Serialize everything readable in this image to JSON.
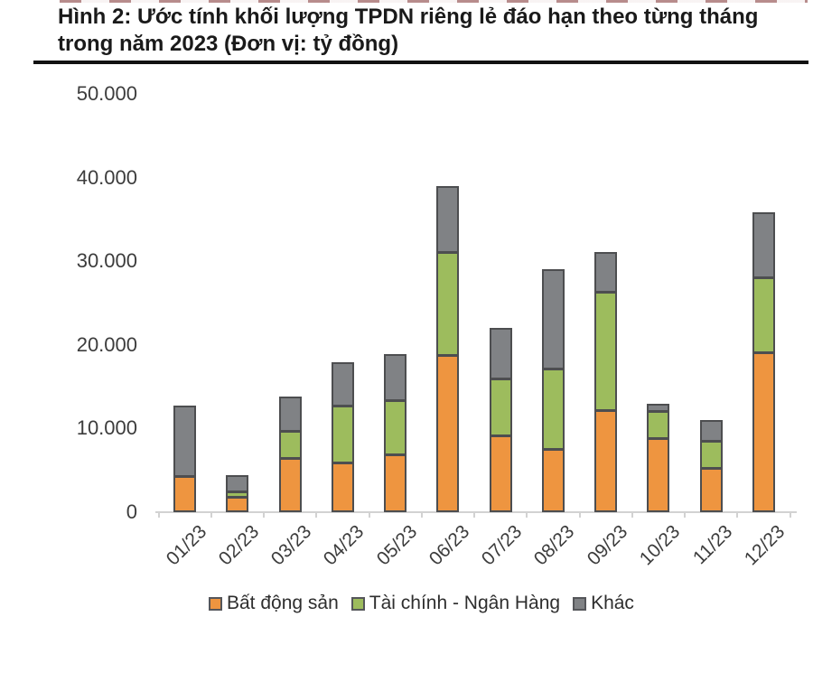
{
  "title": {
    "line1": "Hình 2: Ước tính khối lượng TPDN riêng lẻ đáo hạn theo từng tháng",
    "line2": "trong năm 2023 (Đơn vị: tỷ đồng)"
  },
  "chart_data": {
    "type": "bar",
    "stacked": true,
    "title": "Ước tính khối lượng TPDN riêng lẻ đáo hạn theo từng tháng trong năm 2023",
    "unit": "tỷ đồng",
    "categories": [
      "01/23",
      "02/23",
      "03/23",
      "04/23",
      "05/23",
      "06/23",
      "07/23",
      "08/23",
      "09/23",
      "10/23",
      "11/23",
      "12/23"
    ],
    "series": [
      {
        "name": "Bất động sản",
        "color": "#EE9540",
        "values": [
          4300,
          1800,
          6500,
          5900,
          6900,
          18800,
          9200,
          7600,
          12200,
          8900,
          5300,
          19100
        ]
      },
      {
        "name": "Tài chính - Ngân Hàng",
        "color": "#9DBC5D",
        "values": [
          0,
          800,
          3300,
          6900,
          6600,
          12400,
          6900,
          9700,
          14300,
          3400,
          3400,
          9100
        ]
      },
      {
        "name": "Khác",
        "color": "#808285",
        "values": [
          8500,
          2100,
          4200,
          5300,
          5600,
          8000,
          6200,
          12000,
          4900,
          1000,
          2600,
          7900
        ]
      }
    ],
    "totals": [
      12800,
      4700,
      14000,
      18100,
      19100,
      39200,
      22300,
      29300,
      31400,
      13300,
      11300,
      36100
    ],
    "ylim": [
      0,
      50000
    ],
    "yticks": [
      0,
      10000,
      20000,
      30000,
      40000,
      50000
    ],
    "ytick_labels": [
      "0",
      "10.000",
      "20.000",
      "30.000",
      "40.000",
      "50.000"
    ],
    "grid": false,
    "legend_position": "bottom",
    "bar_border_color": "#4D4E50",
    "axis_color": "#D2D2D2"
  }
}
